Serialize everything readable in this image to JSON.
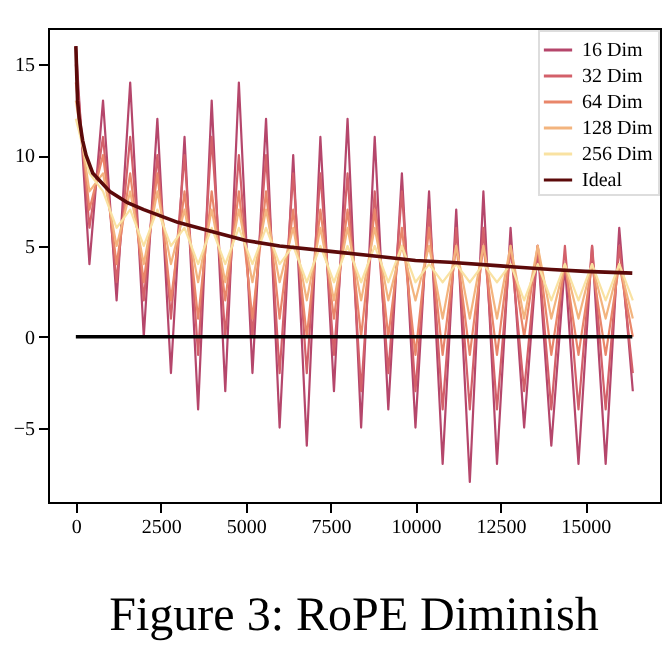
{
  "chart_data": {
    "type": "line",
    "title": "Figure 3: RoPE Diminish",
    "x": [
      0,
      400,
      800,
      1200,
      1600,
      2000,
      2400,
      2800,
      3200,
      3600,
      4000,
      4400,
      4800,
      5200,
      5600,
      6000,
      6400,
      6800,
      7200,
      7600,
      8000,
      8400,
      8800,
      9200,
      9600,
      10000,
      10400,
      10800,
      11200,
      11600,
      12000,
      12400,
      12800,
      13200,
      13600,
      14000,
      14400,
      14800,
      15200,
      15600,
      16000,
      16400
    ],
    "series": [
      {
        "name": "16 Dim",
        "color": "#b5466b",
        "values": [
          16,
          4,
          13,
          2,
          14,
          0,
          12,
          -2,
          11,
          -4,
          13,
          -3,
          14,
          -2,
          12,
          -5,
          10,
          -6,
          11,
          -3,
          12,
          -5,
          11,
          -4,
          9,
          -5,
          8,
          -7,
          7,
          -8,
          8,
          -7,
          6,
          -5,
          5,
          -6,
          4,
          -7,
          5,
          -7,
          6,
          -3
        ]
      },
      {
        "name": "32 Dim",
        "color": "#d3606a",
        "values": [
          15,
          6,
          11,
          3,
          11,
          2,
          10,
          1,
          10,
          -1,
          11,
          0,
          10,
          0,
          10,
          -2,
          9,
          -2,
          9,
          -1,
          9,
          -3,
          8,
          -2,
          8,
          -3,
          7,
          -4,
          6,
          -4,
          6,
          -4,
          5,
          -3,
          5,
          -4,
          5,
          -4,
          5,
          -4,
          5,
          -2
        ]
      },
      {
        "name": "64 Dim",
        "color": "#e9866a",
        "values": [
          14,
          7,
          10,
          4,
          9,
          3,
          9,
          2,
          8,
          1,
          8,
          2,
          8,
          1,
          8,
          1,
          7,
          0,
          7,
          1,
          7,
          0,
          7,
          0,
          6,
          -1,
          6,
          -1,
          5,
          -1,
          5,
          -1,
          5,
          0,
          5,
          -1,
          4,
          -1,
          4,
          -1,
          4,
          0
        ]
      },
      {
        "name": "128 Dim",
        "color": "#f3b47e",
        "values": [
          13,
          8,
          9,
          5,
          8,
          4,
          8,
          4,
          7,
          3,
          7,
          3,
          7,
          3,
          7,
          3,
          6,
          2,
          6,
          2,
          6,
          2,
          6,
          2,
          5,
          2,
          5,
          1,
          5,
          1,
          5,
          1,
          5,
          1,
          5,
          1,
          4,
          1,
          4,
          1,
          4,
          1
        ]
      },
      {
        "name": "256 Dim",
        "color": "#f9e2a2",
        "values": [
          12,
          9,
          8,
          6,
          7,
          5,
          7,
          5,
          6,
          4,
          6,
          4,
          6,
          4,
          6,
          4,
          5,
          3,
          5,
          3,
          5,
          3,
          5,
          3,
          5,
          3,
          4,
          3,
          4,
          3,
          4,
          3,
          4,
          2,
          4,
          2,
          4,
          2,
          4,
          2,
          4,
          2
        ]
      },
      {
        "name": "Ideal",
        "color": "#5c0a0a",
        "x": [
          0,
          50,
          100,
          200,
          300,
          500,
          1000,
          1500,
          2000,
          3000,
          4000,
          5000,
          6000,
          7500,
          9000,
          10000,
          11000,
          12500,
          14000,
          15000,
          16384
        ],
        "values": [
          16,
          13,
          12,
          10.8,
          10,
          9,
          8,
          7.4,
          7,
          6.3,
          5.8,
          5.3,
          5,
          4.7,
          4.4,
          4.2,
          4.1,
          3.9,
          3.7,
          3.6,
          3.5
        ]
      },
      {
        "color": "#000000",
        "x": [
          0,
          16384
        ],
        "values": [
          0,
          0
        ]
      }
    ],
    "xlim": [
      -820,
      17200
    ],
    "ylim": [
      -9.1,
      17.0
    ],
    "xticks": [
      0,
      2500,
      5000,
      7500,
      10000,
      12500,
      15000
    ],
    "yticks": [
      -5,
      0,
      5,
      10,
      15
    ],
    "legend": "top right",
    "grid": false,
    "marker": "none"
  }
}
